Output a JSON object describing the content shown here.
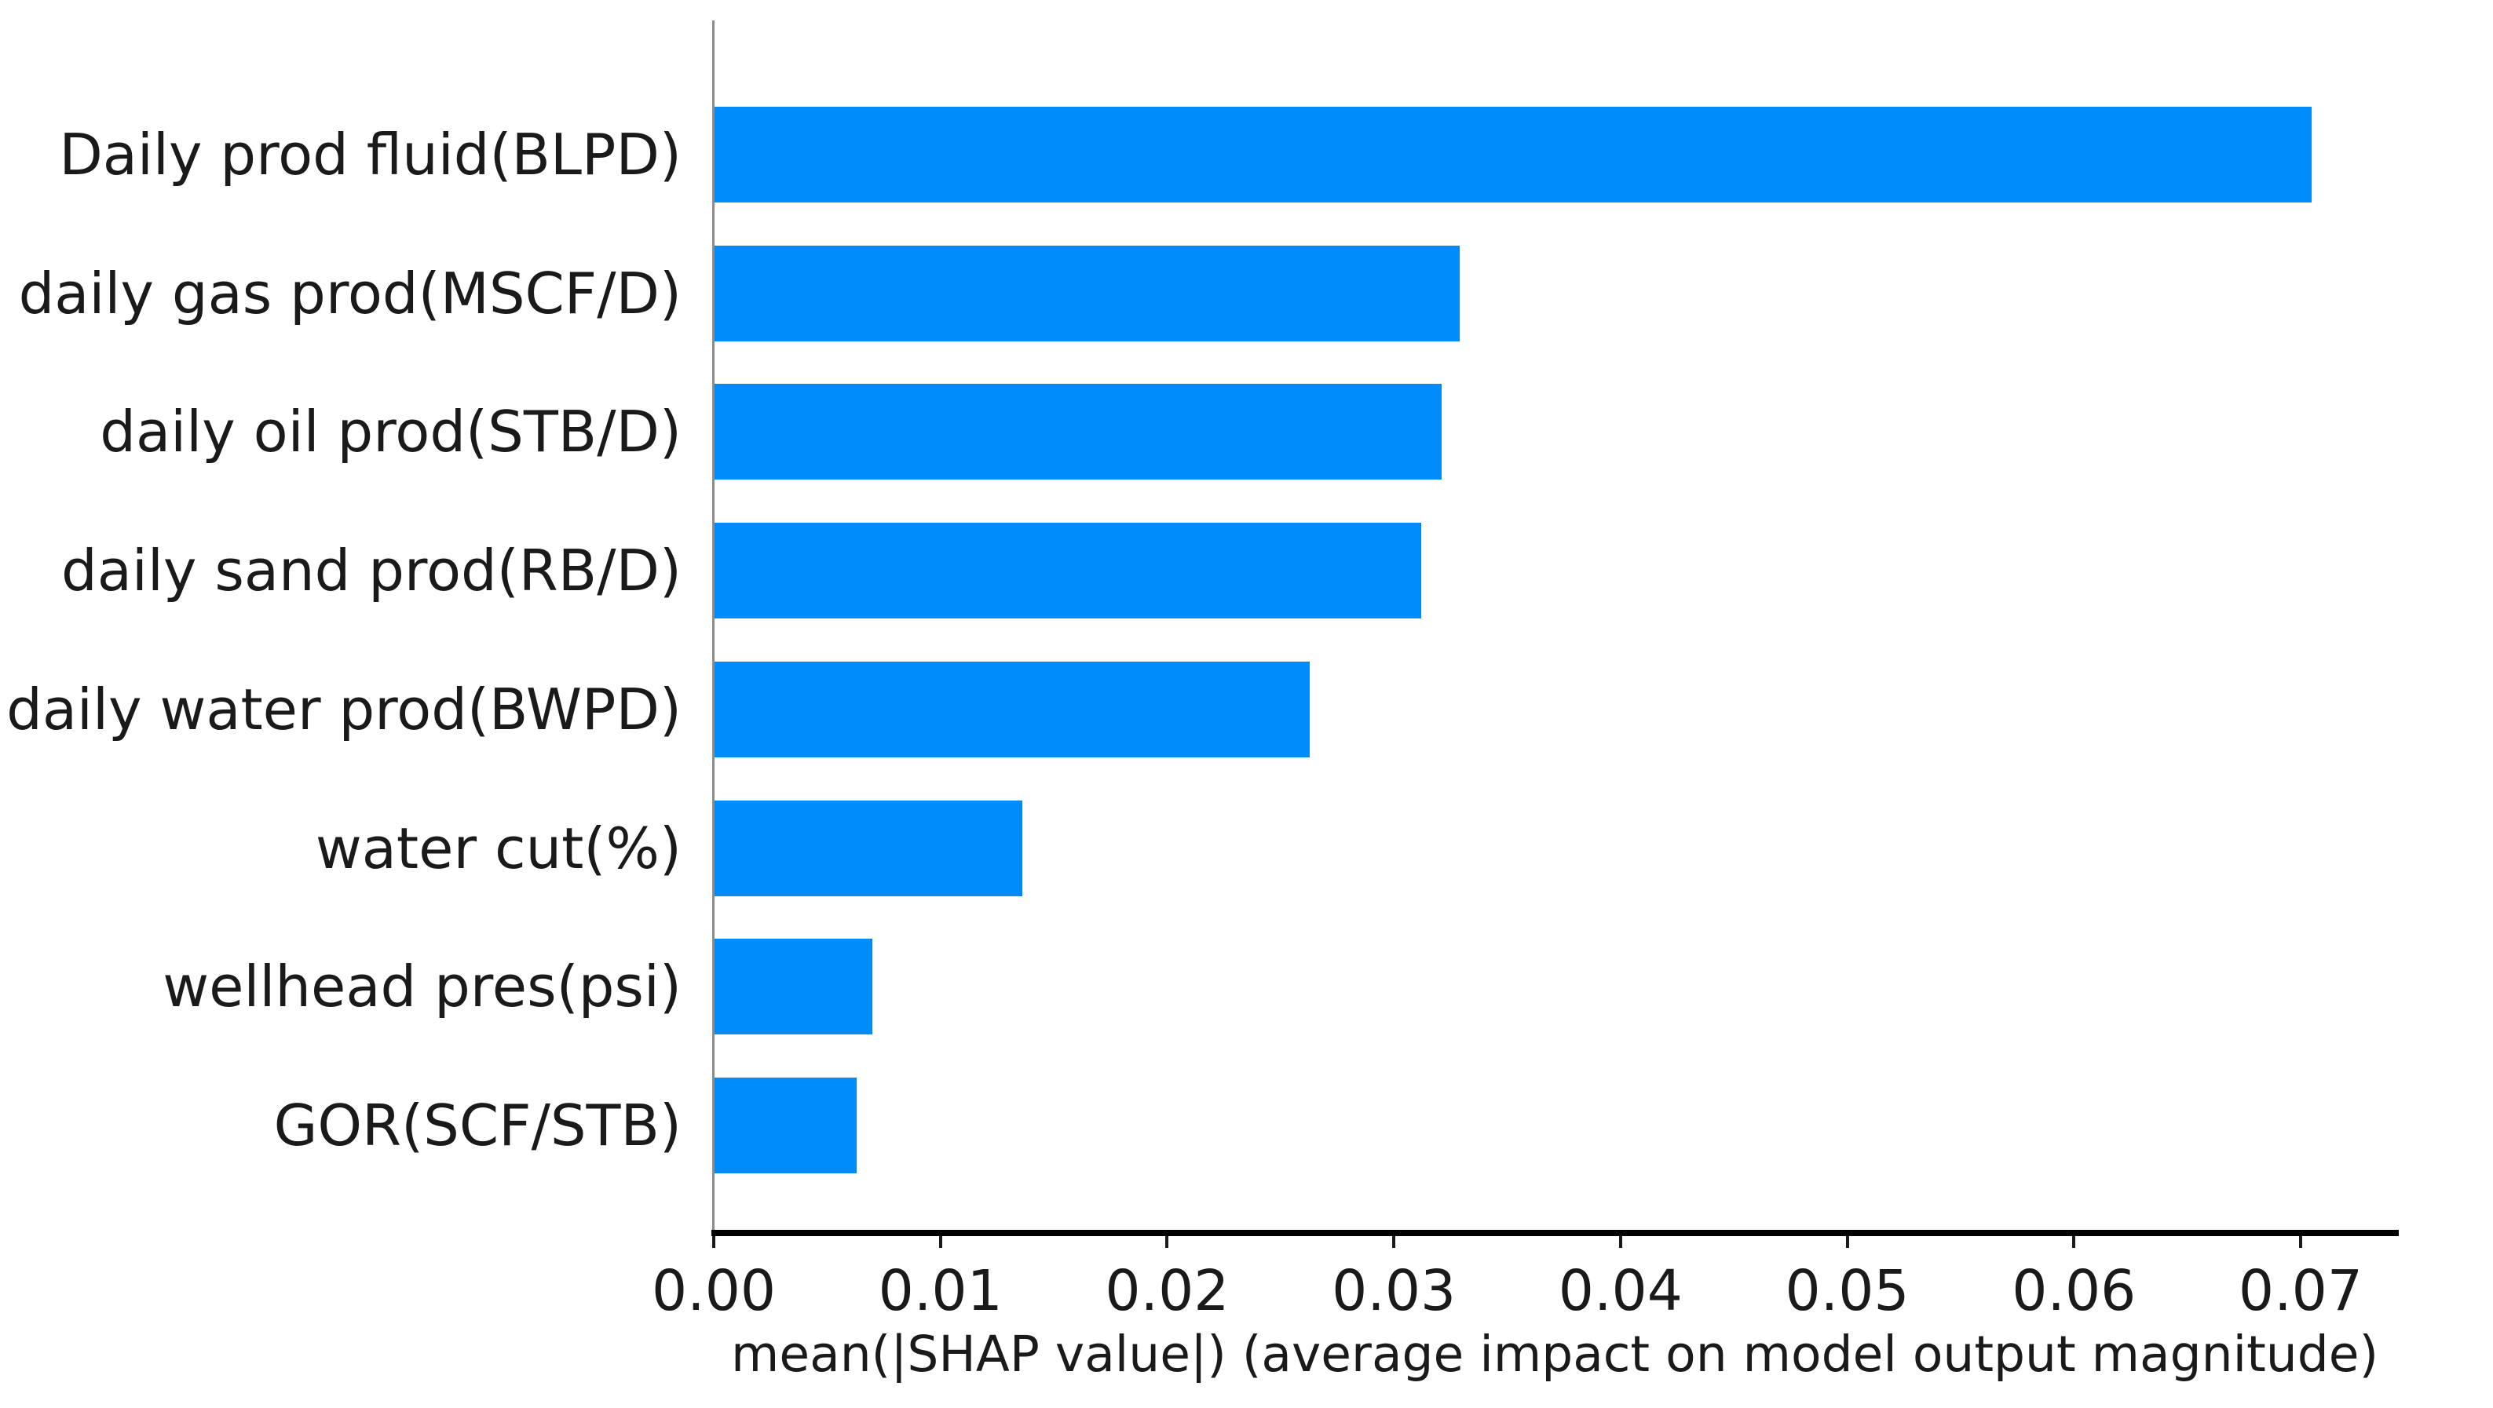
{
  "chart_data": {
    "type": "bar",
    "orientation": "horizontal",
    "title": "",
    "xlabel": "mean(|SHAP value|) (average impact on model output magnitude)",
    "ylabel": "",
    "categories": [
      "Daily prod fluid(BLPD)",
      "daily gas prod(MSCF/D)",
      "daily oil prod(STB/D)",
      "daily sand prod(RB/D)",
      "daily water prod(BWPD)",
      "water cut(%)",
      "wellhead pres(psi)",
      "GOR(SCF/STB)"
    ],
    "values": [
      0.0705,
      0.0329,
      0.0321,
      0.0312,
      0.0263,
      0.0136,
      0.007,
      0.0063
    ],
    "x_ticks": [
      0.0,
      0.01,
      0.02,
      0.03,
      0.04,
      0.05,
      0.06,
      0.07
    ],
    "x_tick_labels": [
      "0.00",
      "0.01",
      "0.02",
      "0.03",
      "0.04",
      "0.05",
      "0.06",
      "0.07"
    ],
    "xlim": [
      0,
      0.0743
    ],
    "grid": false,
    "legend": "none",
    "bar_color": "#008bfb",
    "spine_color": "#8c8c8c",
    "axis_line_color": "#000000",
    "text_color": "#1a1a1a",
    "background_color": "#ffffff"
  }
}
